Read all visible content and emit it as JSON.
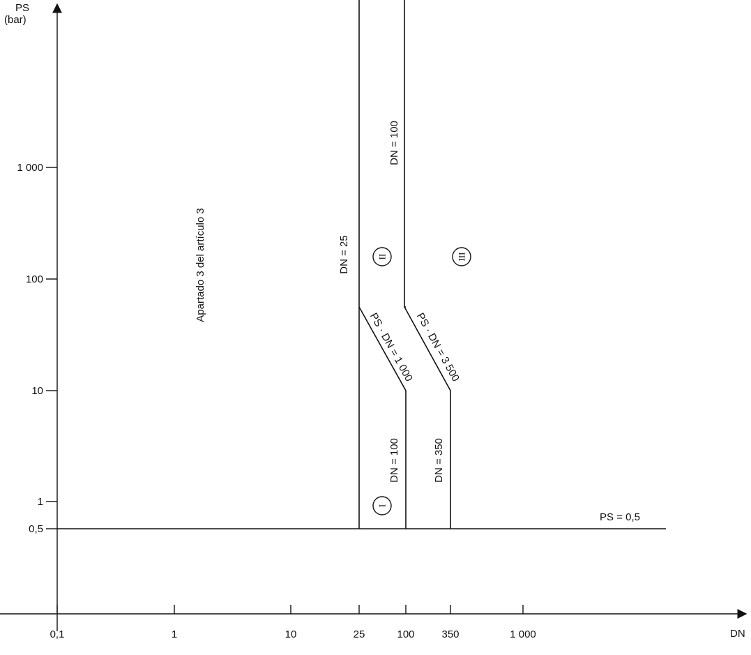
{
  "axes": {
    "y_label_line1": "PS",
    "y_label_line2": "(bar)",
    "x_label": "DN",
    "y_ticks": [
      {
        "value": 1000,
        "label": "1 000"
      },
      {
        "value": 100,
        "label": "100"
      },
      {
        "value": 10,
        "label": "10"
      },
      {
        "value": 1,
        "label": "1"
      },
      {
        "value": 0.5,
        "label": "0,5"
      }
    ],
    "x_ticks": [
      {
        "value": 0.1,
        "label": "0,1"
      },
      {
        "value": 1,
        "label": "1"
      },
      {
        "value": 10,
        "label": "10"
      },
      {
        "value": 25,
        "label": "25"
      },
      {
        "value": 100,
        "label": "100"
      },
      {
        "value": 350,
        "label": "350"
      },
      {
        "value": 1000,
        "label": "1 000"
      }
    ],
    "scale": "log"
  },
  "labels": {
    "article": "Apartado 3 del artículo 3",
    "dn25": "DN = 25",
    "dn100_top": "DN = 100",
    "dn100_bottom": "DN = 100",
    "dn350": "DN = 350",
    "psdn1000": "PS · DN = 1 000",
    "psdn3500": "PS · DN = 3 500",
    "ps05": "PS = 0,5"
  },
  "categories": {
    "I": "I",
    "II": "II",
    "III": "III"
  }
}
